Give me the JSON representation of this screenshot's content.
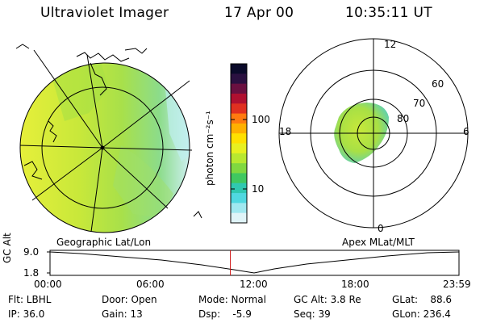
{
  "header": {
    "instrument": "Ultraviolet Imager",
    "date": "17 Apr 00",
    "time": "10:35:11 UT"
  },
  "colorbar": {
    "label": "photon cm⁻²s⁻¹",
    "ticks": [
      "100",
      "10"
    ],
    "colors": [
      "#0a0a2a",
      "#2a1040",
      "#6a1040",
      "#b01030",
      "#e03020",
      "#ff7a10",
      "#ffb000",
      "#ffe000",
      "#e8f020",
      "#b8e830",
      "#80d840",
      "#40c860",
      "#30c8b0",
      "#50d8e0",
      "#a0e8f0",
      "#e0f4f8"
    ]
  },
  "left_panel": {
    "caption": "Geographic Lat/Lon",
    "fill_colors": [
      "#e3ef3a",
      "#c6e83a",
      "#a6e045",
      "#9fe06a",
      "#7fd8a0",
      "#bfeff0"
    ]
  },
  "right_panel": {
    "caption": "Apex MLat/MLT",
    "mlt_labels": {
      "top": "12",
      "left": "18",
      "right": "6",
      "bottom": "0"
    },
    "lat_labels": [
      "60",
      "70",
      "80"
    ]
  },
  "altitude_plot": {
    "ylabel": "GC Alt",
    "yticks": [
      "9.0",
      "1.8"
    ],
    "xticks": [
      "00:00",
      "06:00",
      "12:00",
      "18:00",
      "23:59"
    ],
    "current_time_marker_hours": 10.586
  },
  "status": {
    "flt": "Flt: LBHL",
    "ip": "IP: 36.0",
    "door": "Door: Open",
    "gain": "Gain: 13",
    "mode": "Mode: Normal",
    "dsp": "Dsp:    -5.9",
    "gcalt": "GC Alt: 3.8 Re",
    "seq": "Seq: 39",
    "glat": "GLat:    88.6",
    "glon": "GLon: 236.4"
  }
}
